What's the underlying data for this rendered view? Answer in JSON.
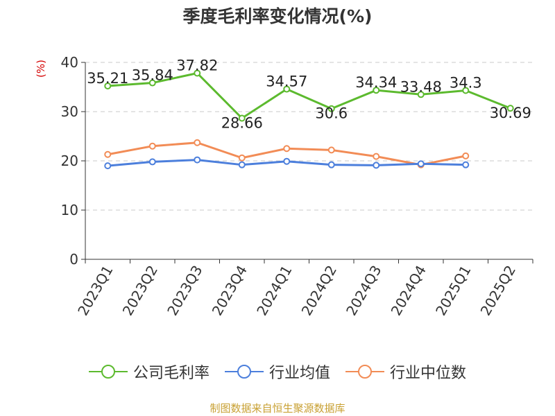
{
  "title": "季度毛利率变化情况(%)",
  "source": "制图数据来自恒生聚源数据库",
  "chart_data": {
    "type": "line",
    "title": "季度毛利率变化情况(%)",
    "ylabel": "(%)",
    "xlabel": "",
    "ylim": [
      0,
      40
    ],
    "yticks": [
      0,
      10,
      20,
      30,
      40
    ],
    "grid": true,
    "legend_position": "bottom",
    "categories": [
      "2023Q1",
      "2023Q2",
      "2023Q3",
      "2023Q4",
      "2024Q1",
      "2024Q2",
      "2024Q3",
      "2024Q4",
      "2025Q1",
      "2025Q2"
    ],
    "series": [
      {
        "name": "公司毛利率",
        "color": "#5cba2e",
        "labels": true,
        "values": [
          35.21,
          35.84,
          37.82,
          28.66,
          34.57,
          30.6,
          34.34,
          33.48,
          34.3,
          30.69
        ]
      },
      {
        "name": "行业均值",
        "color": "#4c7fdc",
        "labels": false,
        "values": [
          19.0,
          19.8,
          20.2,
          19.2,
          19.9,
          19.2,
          19.1,
          19.4,
          19.2,
          null
        ]
      },
      {
        "name": "行业中位数",
        "color": "#f28c56",
        "labels": false,
        "values": [
          21.3,
          23.0,
          23.7,
          20.6,
          22.5,
          22.2,
          20.9,
          19.2,
          21.0,
          null
        ]
      }
    ]
  }
}
